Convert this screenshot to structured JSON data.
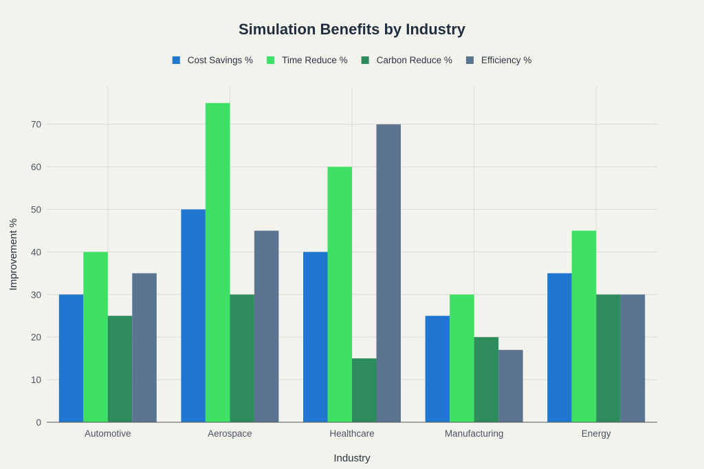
{
  "chart_data": {
    "type": "bar",
    "title": "Simulation Benefits by Industry",
    "xlabel": "Industry",
    "ylabel": "Improvement %",
    "categories": [
      "Automotive",
      "Aerospace",
      "Healthcare",
      "Manufacturing",
      "Energy"
    ],
    "series": [
      {
        "name": "Cost Savings %",
        "color": "#1f77d0",
        "values": [
          30,
          50,
          40,
          25,
          35
        ]
      },
      {
        "name": "Time Reduce %",
        "color": "#3ee066",
        "values": [
          40,
          75,
          60,
          30,
          45
        ]
      },
      {
        "name": "Carbon Reduce %",
        "color": "#2e8b5c",
        "values": [
          25,
          30,
          15,
          20,
          30
        ]
      },
      {
        "name": "Efficiency %",
        "color": "#5b7490",
        "values": [
          35,
          45,
          70,
          17,
          30
        ]
      }
    ],
    "yticks": [
      0,
      10,
      20,
      30,
      40,
      50,
      60,
      70
    ],
    "ylim": [
      0,
      79
    ],
    "grid": true,
    "legend_position": "top"
  }
}
